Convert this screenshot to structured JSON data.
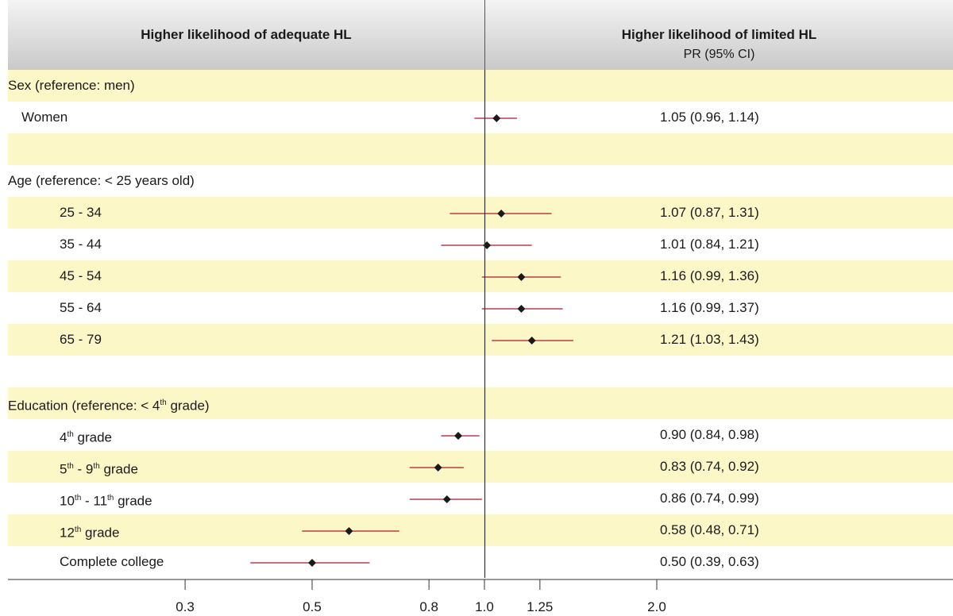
{
  "header": {
    "left": "Higher likelihood of adequate HL",
    "right": "Higher likelihood of limited HL",
    "right_sub": "PR (95% CI)"
  },
  "chart_data": {
    "type": "forest",
    "x_scale": "log",
    "reference_line": 1.0,
    "x_ticks": [
      {
        "value": 0.3,
        "label": "0.3"
      },
      {
        "value": 0.5,
        "label": "0.5"
      },
      {
        "value": 0.8,
        "label": "0.8"
      },
      {
        "value": 1.0,
        "label": "1.0"
      },
      {
        "value": 1.25,
        "label": "1.25"
      },
      {
        "value": 2.0,
        "label": "2.0"
      }
    ],
    "rows": [
      {
        "kind": "group",
        "label": "Sex (reference: men)",
        "shaded": true
      },
      {
        "kind": "item",
        "label": "Women",
        "pr": 1.05,
        "lo": 0.96,
        "hi": 1.14,
        "text": "1.05 (0.96, 1.14)",
        "shaded": false
      },
      {
        "kind": "blank",
        "shaded": true
      },
      {
        "kind": "group",
        "label": "Age (reference: < 25 years old)",
        "shaded": false
      },
      {
        "kind": "item",
        "label": "25 - 34",
        "pr": 1.07,
        "lo": 0.87,
        "hi": 1.31,
        "text": "1.07 (0.87, 1.31)",
        "shaded": true
      },
      {
        "kind": "item",
        "label": "35 - 44",
        "pr": 1.01,
        "lo": 0.84,
        "hi": 1.21,
        "text": "1.01 (0.84, 1.21)",
        "shaded": false
      },
      {
        "kind": "item",
        "label": "45 - 54",
        "pr": 1.16,
        "lo": 0.99,
        "hi": 1.36,
        "text": "1.16 (0.99, 1.36)",
        "shaded": true
      },
      {
        "kind": "item",
        "label": "55 - 64",
        "pr": 1.16,
        "lo": 0.99,
        "hi": 1.37,
        "text": "1.16 (0.99, 1.37)",
        "shaded": false
      },
      {
        "kind": "item",
        "label": "65 - 79",
        "pr": 1.21,
        "lo": 1.03,
        "hi": 1.43,
        "text": "1.21 (1.03, 1.43)",
        "shaded": true
      },
      {
        "kind": "blank",
        "shaded": false
      },
      {
        "kind": "group",
        "label": "Education (reference: < 4",
        "sup": "th",
        "label_after": " grade)",
        "shaded": true
      },
      {
        "kind": "item",
        "label": "4",
        "sup": "th",
        "label_after": " grade",
        "pr": 0.9,
        "lo": 0.84,
        "hi": 0.98,
        "text": "0.90 (0.84, 0.98)",
        "shaded": false
      },
      {
        "kind": "item",
        "label": "5",
        "sup": "th",
        "label_after": " - 9",
        "sup2": "th",
        "label_after2": " grade",
        "pr": 0.83,
        "lo": 0.74,
        "hi": 0.92,
        "text": "0.83 (0.74, 0.92)",
        "shaded": true
      },
      {
        "kind": "item",
        "label": "10",
        "sup": "th",
        "label_after": " - 11",
        "sup2": "th",
        "label_after2": " grade",
        "pr": 0.86,
        "lo": 0.74,
        "hi": 0.99,
        "text": "0.86 (0.74, 0.99)",
        "shaded": false
      },
      {
        "kind": "item",
        "label": "12",
        "sup": "th",
        "label_after": " grade",
        "pr": 0.58,
        "lo": 0.48,
        "hi": 0.71,
        "text": "0.58 (0.48, 0.71)",
        "shaded": true
      },
      {
        "kind": "item",
        "label": "Complete college",
        "pr": 0.5,
        "lo": 0.39,
        "hi": 0.63,
        "text": "0.50 (0.39, 0.63)",
        "shaded": false
      }
    ],
    "colors": {
      "ci_line": "#b0182a",
      "marker": "#1a1a1a",
      "row_shade": "#fcf7c7"
    }
  }
}
